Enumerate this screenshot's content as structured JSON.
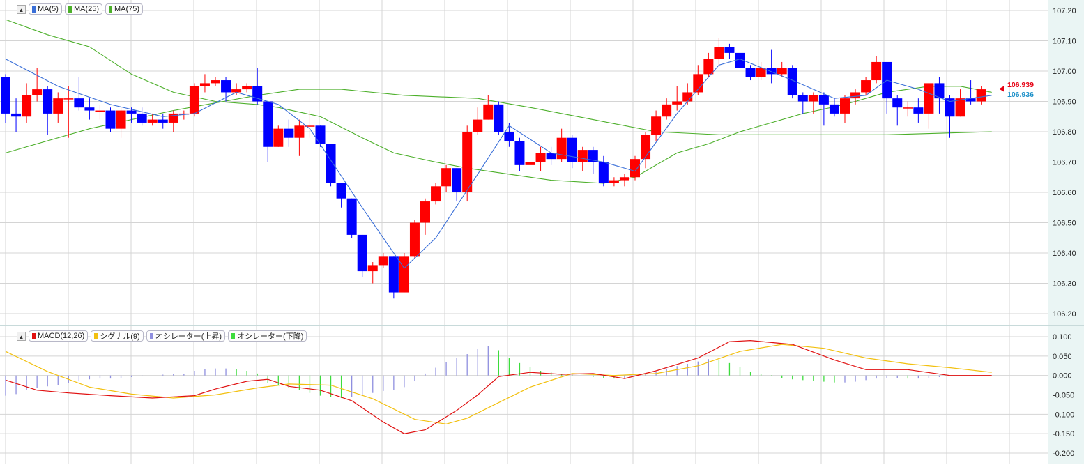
{
  "colors": {
    "up_candle": "#ff0000",
    "down_candle": "#0000ff",
    "ma5": "#3a6fd8",
    "ma25": "#4caf2a",
    "ma75": "#4caf2a",
    "macd": "#e01010",
    "signal": "#f2c010",
    "osc_up": "#8f8fdf",
    "osc_down": "#3ddc3d",
    "price_label_current": "#e60012",
    "price_label_prev": "#1a8fc8",
    "axis_panel_bg": "#eaf5f4",
    "grid": "#d4d4d4"
  },
  "main_legend": {
    "toggle": "▲",
    "items": [
      {
        "label": "MA(5)",
        "color": "#3a6fd8"
      },
      {
        "label": "MA(25)",
        "color": "#4caf2a"
      },
      {
        "label": "MA(75)",
        "color": "#4caf2a"
      }
    ]
  },
  "sub_legend": {
    "toggle": "▲",
    "items": [
      {
        "label": "MACD(12,26)",
        "color": "#e01010"
      },
      {
        "label": "シグナル(9)",
        "color": "#f2c010"
      },
      {
        "label": "オシレーター(上昇)",
        "color": "#8f8fdf"
      },
      {
        "label": "オシレーター(下降)",
        "color": "#3ddc3d"
      }
    ]
  },
  "price_labels": {
    "current": "106.939",
    "previous": "106.936"
  },
  "chart_data": [
    {
      "type": "candlestick",
      "panel": "price",
      "ylim": [
        106.17,
        107.22
      ],
      "ytick_labels": [
        "107.20",
        "107.10",
        "107.00",
        "106.90",
        "106.80",
        "106.70",
        "106.60",
        "106.50",
        "106.40",
        "106.30",
        "106.20"
      ],
      "grid": true,
      "candles": [
        [
          106.98,
          106.86,
          106.99,
          106.83
        ],
        [
          106.86,
          106.85,
          106.91,
          106.8
        ],
        [
          106.85,
          106.92,
          106.96,
          106.83
        ],
        [
          106.92,
          106.94,
          107.01,
          106.9
        ],
        [
          106.94,
          106.86,
          106.95,
          106.79
        ],
        [
          106.86,
          106.91,
          106.93,
          106.83
        ],
        [
          106.91,
          106.91,
          106.95,
          106.78
        ],
        [
          106.91,
          106.88,
          106.98,
          106.87
        ],
        [
          106.88,
          106.87,
          106.91,
          106.84
        ],
        [
          106.87,
          106.87,
          106.89,
          106.84
        ],
        [
          106.87,
          106.81,
          106.88,
          106.8
        ],
        [
          106.81,
          106.87,
          106.88,
          106.78
        ],
        [
          106.87,
          106.86,
          106.88,
          106.83
        ],
        [
          106.86,
          106.83,
          106.88,
          106.82
        ],
        [
          106.83,
          106.84,
          106.86,
          106.82
        ],
        [
          106.84,
          106.83,
          106.86,
          106.81
        ],
        [
          106.83,
          106.86,
          106.87,
          106.8
        ],
        [
          106.86,
          106.86,
          106.87,
          106.84
        ],
        [
          106.86,
          106.95,
          106.96,
          106.85
        ],
        [
          106.95,
          106.96,
          106.99,
          106.93
        ],
        [
          106.96,
          106.97,
          106.98,
          106.95
        ],
        [
          106.97,
          106.93,
          106.98,
          106.9
        ],
        [
          106.93,
          106.94,
          106.96,
          106.92
        ],
        [
          106.94,
          106.95,
          106.96,
          106.93
        ],
        [
          106.95,
          106.9,
          107.01,
          106.89
        ],
        [
          106.9,
          106.75,
          106.9,
          106.7
        ],
        [
          106.75,
          106.81,
          106.82,
          106.75
        ],
        [
          106.81,
          106.78,
          106.84,
          106.75
        ],
        [
          106.78,
          106.82,
          106.84,
          106.72
        ],
        [
          106.82,
          106.82,
          106.87,
          106.78
        ],
        [
          106.82,
          106.76,
          106.82,
          106.75
        ],
        [
          106.76,
          106.63,
          106.76,
          106.62
        ],
        [
          106.63,
          106.58,
          106.63,
          106.55
        ],
        [
          106.58,
          106.46,
          106.58,
          106.45
        ],
        [
          106.46,
          106.34,
          106.46,
          106.32
        ],
        [
          106.34,
          106.36,
          106.37,
          106.3
        ],
        [
          106.36,
          106.39,
          106.4,
          106.35
        ],
        [
          106.39,
          106.27,
          106.39,
          106.25
        ],
        [
          106.27,
          106.39,
          106.4,
          106.27
        ],
        [
          106.39,
          106.5,
          106.51,
          106.38
        ],
        [
          106.5,
          106.57,
          106.58,
          106.46
        ],
        [
          106.57,
          106.62,
          106.63,
          106.56
        ],
        [
          106.62,
          106.68,
          106.69,
          106.6
        ],
        [
          106.68,
          106.6,
          106.68,
          106.57
        ],
        [
          106.6,
          106.8,
          106.82,
          106.57
        ],
        [
          106.8,
          106.84,
          106.88,
          106.79
        ],
        [
          106.84,
          106.89,
          106.92,
          106.84
        ],
        [
          106.89,
          106.8,
          106.9,
          106.79
        ],
        [
          106.8,
          106.77,
          106.83,
          106.75
        ],
        [
          106.77,
          106.69,
          106.78,
          106.67
        ],
        [
          106.69,
          106.7,
          106.73,
          106.58
        ],
        [
          106.7,
          106.73,
          106.75,
          106.67
        ],
        [
          106.73,
          106.71,
          106.75,
          106.69
        ],
        [
          106.71,
          106.78,
          106.81,
          106.7
        ],
        [
          106.78,
          106.7,
          106.79,
          106.68
        ],
        [
          106.7,
          106.74,
          106.75,
          106.67
        ],
        [
          106.74,
          106.7,
          106.75,
          106.66
        ],
        [
          106.7,
          106.63,
          106.72,
          106.62
        ],
        [
          106.63,
          106.64,
          106.65,
          106.62
        ],
        [
          106.64,
          106.65,
          106.66,
          106.62
        ],
        [
          106.65,
          106.71,
          106.72,
          106.64
        ],
        [
          106.71,
          106.79,
          106.8,
          106.68
        ],
        [
          106.79,
          106.85,
          106.87,
          106.77
        ],
        [
          106.85,
          106.89,
          106.91,
          106.84
        ],
        [
          106.89,
          106.9,
          106.95,
          106.87
        ],
        [
          106.9,
          106.93,
          106.96,
          106.89
        ],
        [
          106.93,
          106.99,
          107.02,
          106.92
        ],
        [
          106.99,
          107.04,
          107.06,
          106.98
        ],
        [
          107.04,
          107.08,
          107.11,
          107.02
        ],
        [
          107.08,
          107.06,
          107.09,
          107.04
        ],
        [
          107.06,
          107.01,
          107.07,
          107.0
        ],
        [
          107.01,
          106.98,
          107.02,
          106.97
        ],
        [
          106.98,
          107.01,
          107.03,
          106.97
        ],
        [
          107.01,
          106.99,
          107.07,
          106.96
        ],
        [
          106.99,
          107.01,
          107.03,
          106.98
        ],
        [
          107.01,
          106.92,
          107.02,
          106.91
        ],
        [
          106.92,
          106.9,
          106.93,
          106.86
        ],
        [
          106.9,
          106.92,
          106.93,
          106.86
        ],
        [
          106.92,
          106.89,
          106.93,
          106.82
        ],
        [
          106.89,
          106.86,
          106.91,
          106.85
        ],
        [
          106.86,
          106.91,
          106.92,
          106.83
        ],
        [
          106.91,
          106.93,
          106.94,
          106.89
        ],
        [
          106.93,
          106.97,
          106.98,
          106.92
        ],
        [
          106.97,
          107.03,
          107.05,
          106.96
        ],
        [
          107.03,
          106.91,
          107.03,
          106.86
        ],
        [
          106.91,
          106.88,
          106.92,
          106.82
        ],
        [
          106.88,
          106.88,
          106.9,
          106.85
        ],
        [
          106.88,
          106.86,
          106.91,
          106.83
        ],
        [
          106.86,
          106.96,
          106.96,
          106.81
        ],
        [
          106.96,
          106.91,
          106.98,
          106.86
        ],
        [
          106.91,
          106.85,
          106.92,
          106.78
        ],
        [
          106.85,
          106.91,
          106.94,
          106.85
        ],
        [
          106.91,
          106.9,
          106.97,
          106.89
        ],
        [
          106.9,
          106.94,
          106.95,
          106.89
        ]
      ],
      "ma5_points": [
        [
          0,
          107.04
        ],
        [
          5,
          106.95
        ],
        [
          10,
          106.89
        ],
        [
          15,
          106.85
        ],
        [
          18,
          106.86
        ],
        [
          22,
          106.93
        ],
        [
          26,
          106.89
        ],
        [
          29,
          106.81
        ],
        [
          34,
          106.55
        ],
        [
          38,
          106.35
        ],
        [
          41,
          106.45
        ],
        [
          45,
          106.66
        ],
        [
          48,
          106.82
        ],
        [
          52,
          106.73
        ],
        [
          57,
          106.7
        ],
        [
          60,
          106.67
        ],
        [
          64,
          106.86
        ],
        [
          68,
          107.02
        ],
        [
          70,
          107.04
        ],
        [
          75,
          106.97
        ],
        [
          79,
          106.91
        ],
        [
          82,
          106.92
        ],
        [
          84,
          106.97
        ],
        [
          87,
          106.94
        ],
        [
          90,
          106.9
        ],
        [
          94,
          106.92
        ]
      ],
      "ma25_points": [
        [
          0,
          107.17
        ],
        [
          4,
          107.12
        ],
        [
          8,
          107.08
        ],
        [
          12,
          106.99
        ],
        [
          16,
          106.93
        ],
        [
          20,
          106.9
        ],
        [
          24,
          106.89
        ],
        [
          26,
          106.88
        ],
        [
          30,
          106.85
        ],
        [
          34,
          106.78
        ],
        [
          37,
          106.73
        ],
        [
          41,
          106.7
        ],
        [
          44,
          106.68
        ],
        [
          48,
          106.66
        ],
        [
          52,
          106.64
        ],
        [
          57,
          106.63
        ],
        [
          60,
          106.65
        ],
        [
          64,
          106.73
        ],
        [
          67,
          106.76
        ],
        [
          70,
          106.8
        ],
        [
          73,
          106.83
        ],
        [
          76,
          106.86
        ],
        [
          80,
          106.89
        ],
        [
          84,
          106.93
        ],
        [
          88,
          106.95
        ],
        [
          91,
          106.95
        ],
        [
          94,
          106.93
        ]
      ],
      "ma75_points": [
        [
          0,
          106.73
        ],
        [
          8,
          106.81
        ],
        [
          16,
          106.87
        ],
        [
          24,
          106.92
        ],
        [
          28,
          106.94
        ],
        [
          32,
          106.94
        ],
        [
          38,
          106.92
        ],
        [
          45,
          106.91
        ],
        [
          50,
          106.88
        ],
        [
          56,
          106.84
        ],
        [
          62,
          106.8
        ],
        [
          68,
          106.79
        ],
        [
          76,
          106.79
        ],
        [
          84,
          106.79
        ],
        [
          94,
          106.8
        ]
      ]
    },
    {
      "type": "line",
      "panel": "macd",
      "ylim": [
        -0.205,
        0.103
      ],
      "ytick_labels": [
        "0.100",
        "0.050",
        "0.000",
        "-0.050",
        "-0.100",
        "-0.150",
        "-0.200"
      ],
      "grid": true,
      "series": [
        {
          "name": "MACD(12,26)",
          "points": [
            [
              0,
              -0.012
            ],
            [
              3,
              -0.038
            ],
            [
              6,
              -0.045
            ],
            [
              10,
              -0.052
            ],
            [
              14,
              -0.058
            ],
            [
              18,
              -0.052
            ],
            [
              20,
              -0.035
            ],
            [
              23,
              -0.015
            ],
            [
              25,
              -0.01
            ],
            [
              27,
              -0.028
            ],
            [
              30,
              -0.038
            ],
            [
              33,
              -0.065
            ],
            [
              36,
              -0.12
            ],
            [
              38,
              -0.15
            ],
            [
              40,
              -0.14
            ],
            [
              43,
              -0.09
            ],
            [
              45,
              -0.05
            ],
            [
              47,
              -0.003
            ],
            [
              50,
              0.008
            ],
            [
              53,
              0.003
            ],
            [
              56,
              0.005
            ],
            [
              59,
              -0.008
            ],
            [
              62,
              0.012
            ],
            [
              66,
              0.045
            ],
            [
              69,
              0.087
            ],
            [
              71,
              0.09
            ],
            [
              75,
              0.08
            ],
            [
              79,
              0.04
            ],
            [
              82,
              0.015
            ],
            [
              86,
              0.015
            ],
            [
              90,
              0.0
            ],
            [
              94,
              0.0
            ]
          ]
        },
        {
          "name": "シグナル(9)",
          "points": [
            [
              0,
              0.062
            ],
            [
              4,
              0.01
            ],
            [
              8,
              -0.03
            ],
            [
              12,
              -0.048
            ],
            [
              16,
              -0.058
            ],
            [
              20,
              -0.05
            ],
            [
              24,
              -0.032
            ],
            [
              27,
              -0.022
            ],
            [
              31,
              -0.025
            ],
            [
              35,
              -0.06
            ],
            [
              39,
              -0.113
            ],
            [
              42,
              -0.125
            ],
            [
              44,
              -0.11
            ],
            [
              47,
              -0.07
            ],
            [
              50,
              -0.03
            ],
            [
              54,
              0.005
            ],
            [
              58,
              0.0
            ],
            [
              62,
              0.005
            ],
            [
              66,
              0.025
            ],
            [
              70,
              0.062
            ],
            [
              74,
              0.08
            ],
            [
              78,
              0.07
            ],
            [
              82,
              0.045
            ],
            [
              86,
              0.03
            ],
            [
              90,
              0.02
            ],
            [
              94,
              0.008
            ]
          ]
        }
      ],
      "oscillator": [
        -0.052,
        -0.048,
        -0.038,
        -0.032,
        -0.028,
        -0.025,
        -0.02,
        -0.015,
        -0.01,
        -0.008,
        -0.008,
        -0.006,
        -0.004,
        -0.002,
        0,
        0.002,
        0.003,
        0.004,
        0.012,
        0.016,
        0.018,
        0.018,
        0.016,
        0.012,
        0.005,
        -0.02,
        -0.025,
        -0.032,
        -0.038,
        -0.045,
        -0.052,
        -0.056,
        -0.058,
        -0.056,
        -0.052,
        -0.045,
        -0.04,
        -0.038,
        -0.03,
        -0.015,
        0.005,
        0.02,
        0.035,
        0.045,
        0.055,
        0.068,
        0.076,
        0.065,
        0.045,
        0.032,
        0.022,
        0.012,
        0.008,
        0.004,
        0.002,
        0,
        -0.004,
        -0.006,
        -0.008,
        -0.008,
        -0.002,
        0.004,
        0.01,
        0.018,
        0.024,
        0.03,
        0.036,
        0.042,
        0.04,
        0.032,
        0.022,
        0.01,
        0.004,
        -0.002,
        -0.006,
        -0.01,
        -0.012,
        -0.014,
        -0.016,
        -0.018,
        -0.018,
        -0.016,
        -0.012,
        -0.008,
        -0.006,
        -0.006,
        -0.008,
        -0.008,
        -0.006,
        -0.004,
        -0.002,
        -0.002,
        -0.002,
        -0.002
      ]
    }
  ]
}
